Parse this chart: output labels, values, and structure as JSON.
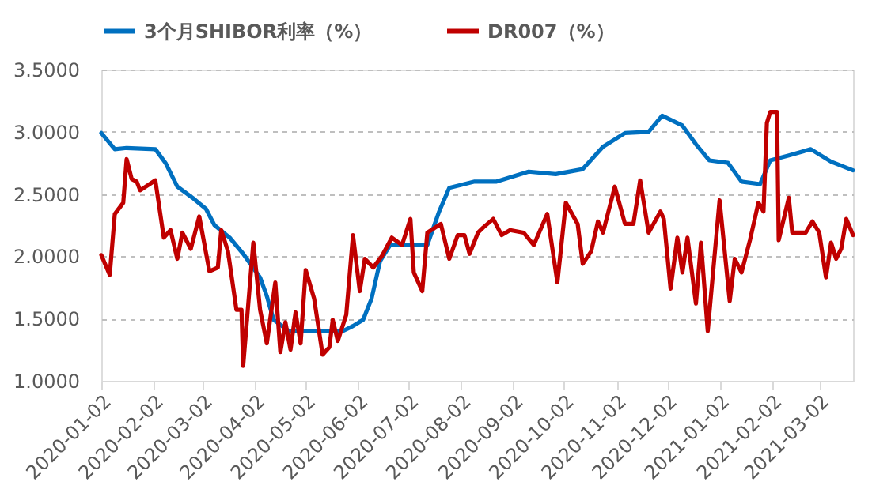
{
  "chart_data": {
    "type": "line",
    "ylim": [
      1.0,
      3.5
    ],
    "yticks": [
      {
        "value": 1.0,
        "label": "1.0000"
      },
      {
        "value": 1.5,
        "label": "1.5000"
      },
      {
        "value": 2.0,
        "label": "2.0000"
      },
      {
        "value": 2.5,
        "label": "2.5000"
      },
      {
        "value": 3.0,
        "label": "3.0000"
      },
      {
        "value": 3.5,
        "label": "3.5000"
      }
    ],
    "xlim": [
      "2020-01-02",
      "2021-03-22"
    ],
    "xticks": [
      "2020-01-02",
      "2020-02-02",
      "2020-03-02",
      "2020-04-02",
      "2020-05-02",
      "2020-06-02",
      "2020-07-02",
      "2020-08-02",
      "2020-09-02",
      "2020-10-02",
      "2020-11-02",
      "2020-12-02",
      "2021-01-02",
      "2021-02-02",
      "2021-03-02"
    ],
    "grid": "y",
    "legend": "top",
    "series": [
      {
        "name": "3个月SHIBOR利率（%）",
        "color": "#0070c0",
        "x": [
          "2020-01-02",
          "2020-01-10",
          "2020-01-17",
          "2020-02-03",
          "2020-02-09",
          "2020-02-16",
          "2020-02-25",
          "2020-03-04",
          "2020-03-09",
          "2020-03-18",
          "2020-03-26",
          "2020-04-05",
          "2020-04-09",
          "2020-04-13",
          "2020-04-22",
          "2020-05-24",
          "2020-05-30",
          "2020-06-05",
          "2020-06-10",
          "2020-06-15",
          "2020-06-21",
          "2020-07-13",
          "2020-07-20",
          "2020-07-26",
          "2020-08-10",
          "2020-08-23",
          "2020-09-11",
          "2020-09-27",
          "2020-10-13",
          "2020-10-25",
          "2020-11-07",
          "2020-11-21",
          "2020-11-29",
          "2020-12-11",
          "2020-12-19",
          "2020-12-27",
          "2021-01-07",
          "2021-01-15",
          "2021-01-26",
          "2021-02-01",
          "2021-02-12",
          "2021-02-25",
          "2021-03-09",
          "2021-03-22"
        ],
        "values": [
          2.99,
          2.86,
          2.87,
          2.86,
          2.75,
          2.56,
          2.47,
          2.38,
          2.25,
          2.15,
          2.02,
          1.83,
          1.68,
          1.49,
          1.4,
          1.4,
          1.44,
          1.49,
          1.66,
          1.96,
          2.09,
          2.09,
          2.36,
          2.55,
          2.6,
          2.6,
          2.68,
          2.66,
          2.7,
          2.88,
          2.99,
          3.0,
          3.13,
          3.05,
          2.9,
          2.77,
          2.75,
          2.6,
          2.58,
          2.77,
          2.81,
          2.86,
          2.76,
          2.69
        ]
      },
      {
        "name": "DR007（%）",
        "color": "#c00000",
        "x": [
          "2020-01-02",
          "2020-01-07",
          "2020-01-10",
          "2020-01-15",
          "2020-01-17",
          "2020-01-20",
          "2020-01-23",
          "2020-01-25",
          "2020-02-03",
          "2020-02-08",
          "2020-02-12",
          "2020-02-16",
          "2020-02-19",
          "2020-02-24",
          "2020-02-29",
          "2020-03-06",
          "2020-03-11",
          "2020-03-13",
          "2020-03-17",
          "2020-03-22",
          "2020-03-25",
          "2020-03-26",
          "2020-04-01",
          "2020-04-05",
          "2020-04-09",
          "2020-04-14",
          "2020-04-17",
          "2020-04-20",
          "2020-04-23",
          "2020-04-26",
          "2020-04-29",
          "2020-05-02",
          "2020-05-07",
          "2020-05-12",
          "2020-05-16",
          "2020-05-18",
          "2020-05-21",
          "2020-05-26",
          "2020-05-30",
          "2020-06-03",
          "2020-06-06",
          "2020-06-11",
          "2020-06-16",
          "2020-06-22",
          "2020-06-28",
          "2020-07-03",
          "2020-07-05",
          "2020-07-10",
          "2020-07-13",
          "2020-07-21",
          "2020-07-26",
          "2020-07-31",
          "2020-08-04",
          "2020-08-07",
          "2020-08-12",
          "2020-08-15",
          "2020-08-21",
          "2020-08-26",
          "2020-08-31",
          "2020-09-08",
          "2020-09-14",
          "2020-09-22",
          "2020-09-28",
          "2020-10-03",
          "2020-10-10",
          "2020-10-13",
          "2020-10-18",
          "2020-10-22",
          "2020-10-25",
          "2020-11-01",
          "2020-11-07",
          "2020-11-12",
          "2020-11-16",
          "2020-11-21",
          "2020-11-28",
          "2020-11-30",
          "2020-12-04",
          "2020-12-08",
          "2020-12-11",
          "2020-12-14",
          "2020-12-19",
          "2020-12-22",
          "2020-12-26",
          "2021-01-02",
          "2021-01-08",
          "2021-01-11",
          "2021-01-15",
          "2021-01-20",
          "2021-01-25",
          "2021-01-28",
          "2021-01-30",
          "2021-02-01",
          "2021-02-05",
          "2021-02-06",
          "2021-02-09",
          "2021-02-12",
          "2021-02-14",
          "2021-02-22",
          "2021-02-26",
          "2021-03-02",
          "2021-03-06",
          "2021-03-09",
          "2021-03-12",
          "2021-03-15",
          "2021-03-18",
          "2021-03-22"
        ],
        "values": [
          2.01,
          1.85,
          2.34,
          2.43,
          2.78,
          2.62,
          2.6,
          2.53,
          2.61,
          2.15,
          2.21,
          1.98,
          2.19,
          2.06,
          2.32,
          1.88,
          1.91,
          2.21,
          2.04,
          1.57,
          1.57,
          1.12,
          2.11,
          1.57,
          1.3,
          1.79,
          1.23,
          1.47,
          1.25,
          1.55,
          1.3,
          1.89,
          1.66,
          1.21,
          1.27,
          1.49,
          1.32,
          1.53,
          2.17,
          1.72,
          1.98,
          1.91,
          2.0,
          2.15,
          2.09,
          2.3,
          1.87,
          1.72,
          2.19,
          2.26,
          1.98,
          2.17,
          2.17,
          2.02,
          2.19,
          2.23,
          2.3,
          2.17,
          2.21,
          2.19,
          2.09,
          2.34,
          1.79,
          2.43,
          2.26,
          1.94,
          2.04,
          2.28,
          2.19,
          2.56,
          2.26,
          2.26,
          2.61,
          2.19,
          2.36,
          2.3,
          1.74,
          2.15,
          1.87,
          2.15,
          1.62,
          2.11,
          1.4,
          2.45,
          1.64,
          1.98,
          1.87,
          2.13,
          2.43,
          2.36,
          3.07,
          3.16,
          3.16,
          2.13,
          2.3,
          2.47,
          2.19,
          2.19,
          2.28,
          2.19,
          1.83,
          2.11,
          1.98,
          2.06,
          2.3,
          2.17
        ]
      }
    ]
  }
}
